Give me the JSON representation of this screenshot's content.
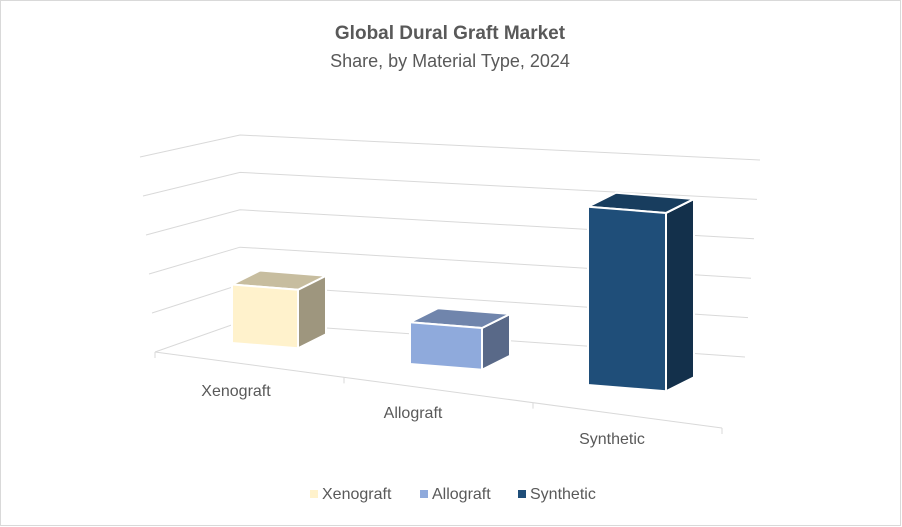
{
  "chart_data": {
    "type": "bar3d",
    "title": "Global Dural Graft Market",
    "subtitle": "Share, by Material Type, 2024",
    "categories": [
      "Xenograft",
      "Allograft",
      "Synthetic"
    ],
    "values": [
      21,
      15,
      64
    ],
    "colors": [
      "#fff2cc",
      "#8faadc",
      "#1f4e79"
    ],
    "ylim": [
      0,
      70
    ],
    "yticks": [
      0,
      14,
      28,
      42,
      56,
      70
    ],
    "grid": true,
    "legend": "bottom"
  }
}
